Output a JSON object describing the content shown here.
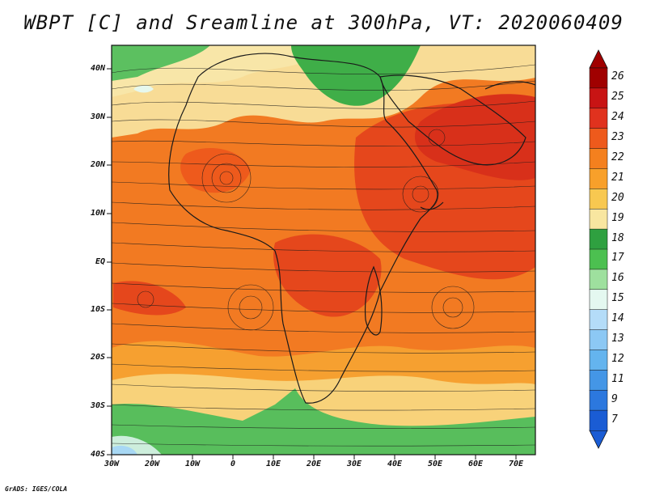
{
  "title": "WBPT [C] and Sreamline at 300hPa, VT: 2020060409",
  "credit": "GrADS: IGES/COLA",
  "map": {
    "lat_labels": [
      "40N",
      "30N",
      "20N",
      "10N",
      "EQ",
      "10S",
      "20S",
      "30S",
      "40S"
    ],
    "lon_labels": [
      "30W",
      "20W",
      "10W",
      "0",
      "10E",
      "20E",
      "30E",
      "40E",
      "50E",
      "60E",
      "70E"
    ]
  },
  "colorbar": {
    "labels": [
      "26",
      "25",
      "24",
      "23",
      "22",
      "21",
      "20",
      "19",
      "18",
      "17",
      "16",
      "15",
      "14",
      "13",
      "12",
      "11",
      "9",
      "7"
    ],
    "colors": [
      "#a00000",
      "#c81414",
      "#e0321e",
      "#ee5a1c",
      "#f4801e",
      "#f8a02a",
      "#f8c850",
      "#f8e6a0",
      "#2fa040",
      "#4cc050",
      "#9ee09e",
      "#e4f8f0",
      "#b4dcf8",
      "#8cc8f4",
      "#64b4ee",
      "#4496e6",
      "#2c78de",
      "#1a5cd4"
    ]
  }
}
